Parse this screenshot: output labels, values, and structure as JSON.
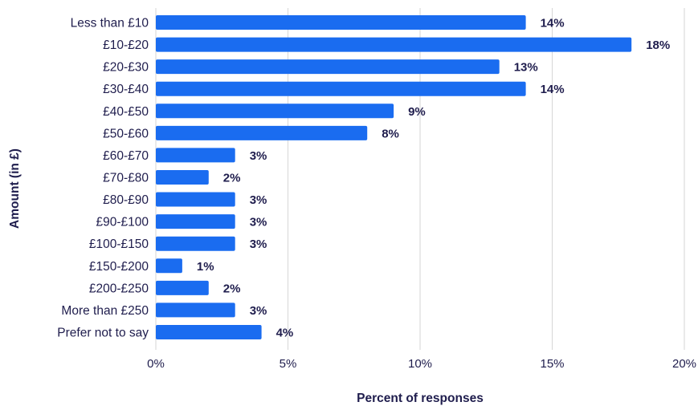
{
  "chart_data": {
    "type": "bar",
    "orientation": "horizontal",
    "categories": [
      "Less than £10",
      "£10-£20",
      "£20-£30",
      "£30-£40",
      "£40-£50",
      "£50-£60",
      "£60-£70",
      "£70-£80",
      "£80-£90",
      "£90-£100",
      "£100-£150",
      "£150-£200",
      "£200-£250",
      "More than £250",
      "Prefer not to say"
    ],
    "values": [
      14,
      18,
      13,
      14,
      9,
      8,
      3,
      2,
      3,
      3,
      3,
      1,
      2,
      3,
      4
    ],
    "value_labels": [
      "14%",
      "18%",
      "13%",
      "14%",
      "9%",
      "8%",
      "3%",
      "2%",
      "3%",
      "3%",
      "3%",
      "1%",
      "2%",
      "3%",
      "4%"
    ],
    "xlabel": "Percent of responses",
    "ylabel": "Amount (in £)",
    "xlim": [
      0,
      20
    ],
    "xticks": [
      "0%",
      "5%",
      "10%",
      "15%",
      "20%"
    ],
    "grid": true,
    "bar_color": "#1a6cf0",
    "text_color": "#1f1d4d"
  }
}
